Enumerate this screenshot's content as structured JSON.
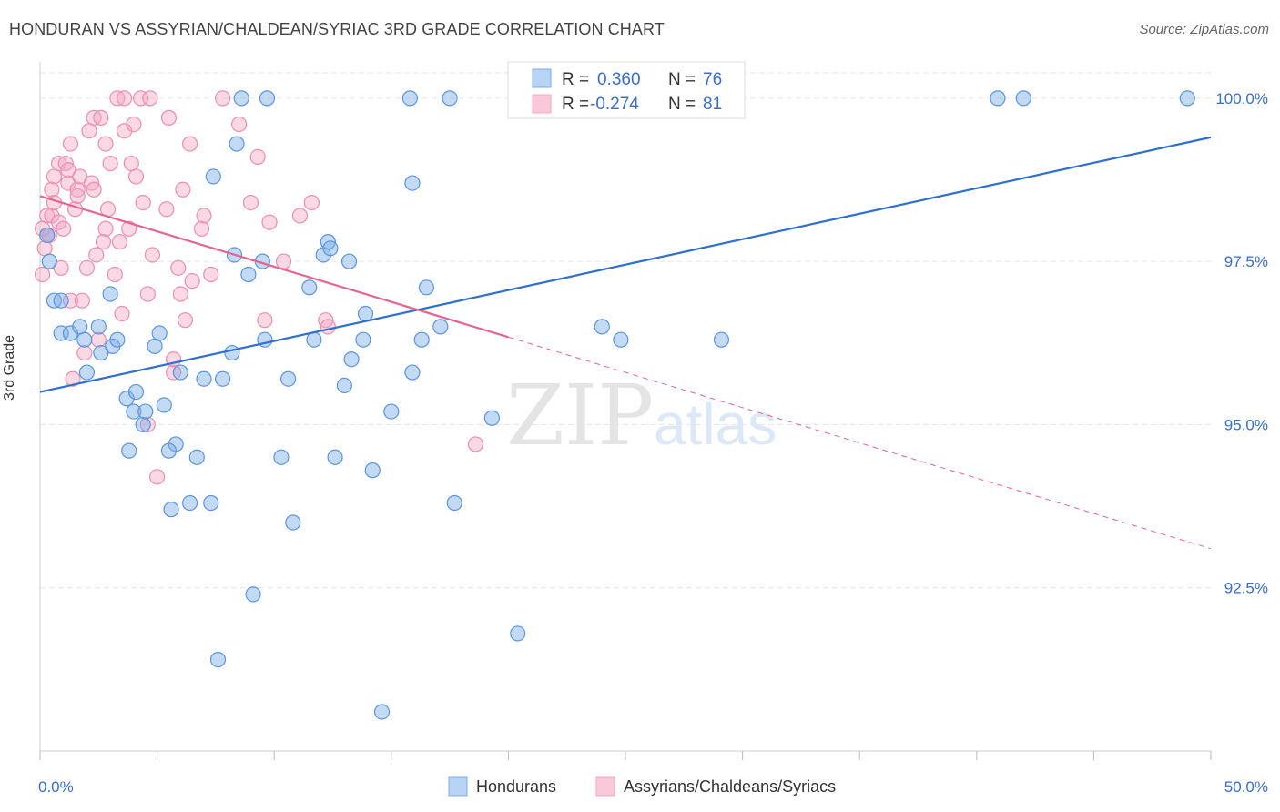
{
  "title": "HONDURAN VS ASSYRIAN/CHALDEAN/SYRIAC 3RD GRADE CORRELATION CHART",
  "source": "Source: ZipAtlas.com",
  "watermark": {
    "zip": "ZIP",
    "atlas": "atlas"
  },
  "colors": {
    "blue": "#7aaee8",
    "blue_line": "#2f6fd0",
    "pink": "#f4a8c3",
    "pink_line": "#e46591",
    "tick_text": "#3a6fc9",
    "grid": "#e6e6e6"
  },
  "legend_stats": [
    {
      "r_label": "R =",
      "r_value": "0.360",
      "n_label": "N =",
      "n_value": "76"
    },
    {
      "r_label": "R =",
      "r_value": "-0.274",
      "n_label": "N =",
      "n_value": "81"
    }
  ],
  "chart_data": {
    "type": "scatter",
    "title": "HONDURAN VS ASSYRIAN/CHALDEAN/SYRIAC 3RD GRADE CORRELATION CHART",
    "xlabel": "",
    "ylabel": "3rd Grade",
    "xlim": [
      0,
      50
    ],
    "ylim": [
      90.0,
      100.5
    ],
    "x_tick_labels": [
      "0.0%",
      "50.0%"
    ],
    "y_ticks": [
      92.5,
      95.0,
      97.5,
      100.0
    ],
    "y_tick_labels": [
      "92.5%",
      "95.0%",
      "97.5%",
      "100.0%"
    ],
    "grid": true,
    "legend_position": "bottom-center",
    "series": [
      {
        "name": "Hondurans",
        "color": "#7aaee8",
        "r": 0.36,
        "n": 76,
        "trend": {
          "x": [
            0,
            50
          ],
          "y": [
            95.5,
            99.4
          ],
          "dashed_from": null
        },
        "points": [
          [
            0.3,
            97.9
          ],
          [
            0.4,
            97.5
          ],
          [
            0.6,
            96.9
          ],
          [
            0.9,
            96.9
          ],
          [
            0.9,
            96.4
          ],
          [
            1.3,
            96.4
          ],
          [
            1.7,
            96.5
          ],
          [
            1.9,
            96.3
          ],
          [
            2.0,
            95.8
          ],
          [
            2.5,
            96.5
          ],
          [
            2.6,
            96.1
          ],
          [
            3.1,
            96.2
          ],
          [
            3.3,
            96.3
          ],
          [
            3.7,
            95.4
          ],
          [
            3.8,
            94.6
          ],
          [
            4.0,
            95.2
          ],
          [
            4.1,
            95.5
          ],
          [
            4.4,
            95.0
          ],
          [
            4.5,
            95.2
          ],
          [
            4.9,
            96.2
          ],
          [
            5.1,
            96.4
          ],
          [
            5.3,
            95.3
          ],
          [
            5.6,
            93.7
          ],
          [
            5.8,
            94.7
          ],
          [
            6.0,
            95.8
          ],
          [
            6.4,
            93.8
          ],
          [
            6.7,
            94.5
          ],
          [
            7.0,
            95.7
          ],
          [
            7.3,
            93.8
          ],
          [
            7.6,
            91.4
          ],
          [
            7.8,
            95.7
          ],
          [
            8.2,
            96.1
          ],
          [
            8.4,
            99.3
          ],
          [
            8.6,
            100.0
          ],
          [
            8.9,
            97.3
          ],
          [
            9.1,
            92.4
          ],
          [
            9.5,
            97.5
          ],
          [
            9.6,
            96.3
          ],
          [
            9.7,
            100.0
          ],
          [
            10.3,
            94.5
          ],
          [
            10.6,
            95.7
          ],
          [
            10.8,
            93.5
          ],
          [
            11.5,
            97.1
          ],
          [
            11.7,
            96.3
          ],
          [
            12.1,
            97.6
          ],
          [
            12.3,
            97.8
          ],
          [
            12.6,
            94.5
          ],
          [
            13.0,
            95.6
          ],
          [
            13.2,
            97.5
          ],
          [
            13.3,
            96.0
          ],
          [
            13.8,
            96.3
          ],
          [
            13.9,
            96.7
          ],
          [
            14.2,
            94.3
          ],
          [
            14.6,
            90.6
          ],
          [
            15.0,
            95.2
          ],
          [
            15.8,
            100.0
          ],
          [
            15.9,
            95.8
          ],
          [
            15.9,
            98.7
          ],
          [
            16.3,
            96.3
          ],
          [
            16.5,
            97.1
          ],
          [
            17.1,
            96.5
          ],
          [
            17.5,
            100.0
          ],
          [
            17.7,
            93.8
          ],
          [
            19.3,
            95.1
          ],
          [
            20.4,
            91.8
          ],
          [
            24.0,
            96.5
          ],
          [
            24.8,
            96.3
          ],
          [
            29.1,
            96.3
          ],
          [
            40.9,
            100.0
          ],
          [
            42.0,
            100.0
          ],
          [
            49.0,
            100.0
          ],
          [
            7.4,
            98.8
          ],
          [
            8.3,
            97.6
          ],
          [
            12.4,
            97.7
          ],
          [
            5.5,
            94.6
          ],
          [
            3.0,
            97.0
          ]
        ]
      },
      {
        "name": "Assyrians/Chaldeans/Syriacs",
        "color": "#f4a8c3",
        "r": -0.274,
        "n": 81,
        "trend": {
          "x": [
            0,
            50
          ],
          "y": [
            98.5,
            93.1
          ],
          "dashed_from": 20
        },
        "points": [
          [
            0.1,
            98.0
          ],
          [
            0.1,
            97.3
          ],
          [
            0.2,
            97.7
          ],
          [
            0.3,
            98.2
          ],
          [
            0.4,
            97.9
          ],
          [
            0.5,
            98.6
          ],
          [
            0.5,
            98.2
          ],
          [
            0.6,
            98.4
          ],
          [
            0.6,
            98.8
          ],
          [
            0.8,
            99.0
          ],
          [
            0.8,
            98.1
          ],
          [
            0.9,
            97.4
          ],
          [
            1.0,
            98.0
          ],
          [
            1.1,
            99.0
          ],
          [
            1.2,
            98.7
          ],
          [
            1.3,
            99.3
          ],
          [
            1.3,
            96.9
          ],
          [
            1.4,
            95.7
          ],
          [
            1.5,
            98.3
          ],
          [
            1.6,
            98.6
          ],
          [
            1.7,
            98.8
          ],
          [
            1.8,
            96.9
          ],
          [
            1.9,
            96.1
          ],
          [
            2.0,
            97.4
          ],
          [
            2.1,
            99.5
          ],
          [
            2.2,
            98.7
          ],
          [
            2.3,
            98.6
          ],
          [
            2.3,
            99.7
          ],
          [
            2.4,
            97.6
          ],
          [
            2.6,
            99.7
          ],
          [
            2.7,
            97.8
          ],
          [
            2.8,
            98.0
          ],
          [
            2.8,
            99.3
          ],
          [
            3.0,
            99.0
          ],
          [
            3.2,
            97.3
          ],
          [
            3.3,
            100.0
          ],
          [
            3.4,
            97.8
          ],
          [
            3.6,
            100.0
          ],
          [
            3.6,
            99.5
          ],
          [
            3.9,
            99.0
          ],
          [
            4.0,
            99.6
          ],
          [
            4.1,
            98.8
          ],
          [
            4.3,
            100.0
          ],
          [
            4.4,
            98.4
          ],
          [
            4.6,
            97.0
          ],
          [
            4.7,
            100.0
          ],
          [
            4.8,
            97.6
          ],
          [
            5.0,
            94.2
          ],
          [
            5.4,
            98.3
          ],
          [
            5.5,
            99.7
          ],
          [
            5.7,
            95.8
          ],
          [
            5.7,
            96.0
          ],
          [
            6.0,
            97.0
          ],
          [
            6.1,
            98.6
          ],
          [
            6.2,
            96.6
          ],
          [
            6.4,
            99.3
          ],
          [
            6.5,
            97.2
          ],
          [
            6.9,
            98.0
          ],
          [
            7.0,
            98.2
          ],
          [
            7.3,
            97.3
          ],
          [
            7.8,
            100.0
          ],
          [
            8.5,
            99.6
          ],
          [
            9.0,
            98.4
          ],
          [
            9.3,
            99.1
          ],
          [
            9.6,
            96.6
          ],
          [
            9.8,
            98.1
          ],
          [
            10.4,
            97.5
          ],
          [
            11.1,
            98.2
          ],
          [
            11.6,
            98.4
          ],
          [
            12.2,
            96.6
          ],
          [
            12.3,
            96.5
          ],
          [
            18.6,
            94.7
          ],
          [
            1.2,
            98.9
          ],
          [
            2.5,
            96.3
          ],
          [
            3.8,
            98.0
          ],
          [
            0.3,
            97.9
          ],
          [
            4.6,
            95.0
          ],
          [
            5.9,
            97.4
          ],
          [
            1.6,
            98.5
          ],
          [
            2.9,
            98.3
          ],
          [
            3.5,
            96.7
          ]
        ]
      }
    ]
  }
}
